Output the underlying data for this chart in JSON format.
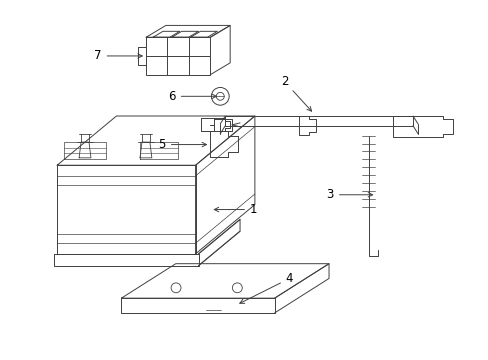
{
  "background_color": "#ffffff",
  "line_color": "#404040",
  "label_color": "#000000",
  "lw": 0.7,
  "label_fontsize": 8.5
}
